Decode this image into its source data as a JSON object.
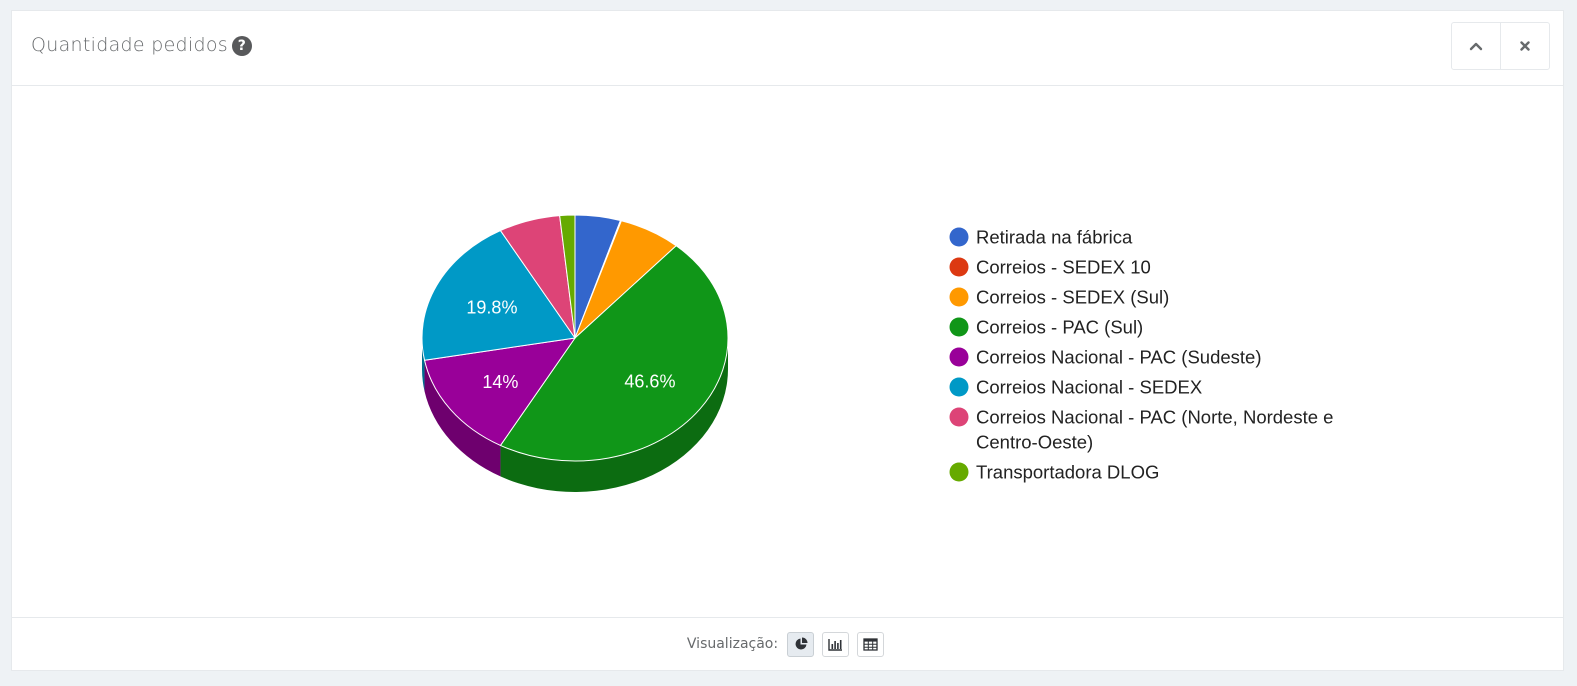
{
  "header": {
    "title": "Quantidade pedidos",
    "help_icon": "question-circle-icon",
    "collapse_icon": "chevron-up-icon",
    "close_icon": "close-icon"
  },
  "footer": {
    "label": "Visualização:",
    "views": [
      {
        "icon": "pie-chart-icon",
        "active": true
      },
      {
        "icon": "bar-chart-icon",
        "active": false
      },
      {
        "icon": "table-icon",
        "active": false
      }
    ]
  },
  "chart_data": {
    "type": "pie",
    "title": "",
    "legend_position": "right",
    "slices": [
      {
        "name": "Retirada na fábrica",
        "value": 4.8,
        "color": "#3366cc",
        "label": ""
      },
      {
        "name": "Correios - SEDEX 10",
        "value": 0.1,
        "color": "#dc3912",
        "label": ""
      },
      {
        "name": "Correios - SEDEX (Sul)",
        "value": 6.6,
        "color": "#ff9900",
        "label": ""
      },
      {
        "name": "Correios - PAC (Sul)",
        "value": 46.6,
        "color": "#109618",
        "label": "46.6%"
      },
      {
        "name": "Correios Nacional - PAC (Sudeste)",
        "value": 14,
        "color": "#990099",
        "label": "14%"
      },
      {
        "name": "Correios Nacional - SEDEX",
        "value": 19.8,
        "color": "#0099c6",
        "label": "19.8%"
      },
      {
        "name": "Correios Nacional - PAC (Norte, Nordeste e Centro-Oeste)",
        "value": 6.5,
        "color": "#dd4477",
        "label": ""
      },
      {
        "name": "Transportadora DLOG",
        "value": 1.6,
        "color": "#66aa00",
        "label": ""
      }
    ]
  }
}
